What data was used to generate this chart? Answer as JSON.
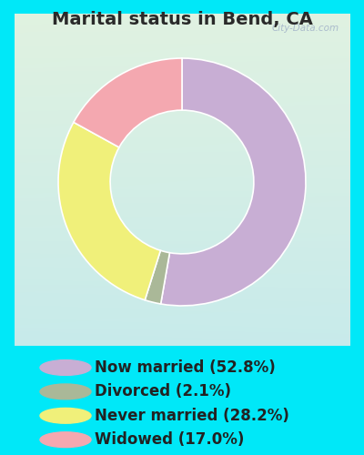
{
  "title": "Marital status in Bend, CA",
  "slices": [
    52.8,
    2.1,
    28.2,
    17.0
  ],
  "labels": [
    "Now married (52.8%)",
    "Divorced (2.1%)",
    "Never married (28.2%)",
    "Widowed (17.0%)"
  ],
  "colors": [
    "#c8aed4",
    "#aab898",
    "#f0f07a",
    "#f4a8b0"
  ],
  "outer_bg": "#00e8f8",
  "chart_bg_top_left": "#d8ede0",
  "chart_bg_bottom_right": "#c0dde8",
  "title_color": "#2a2a2a",
  "title_fontsize": 14,
  "legend_fontsize": 12,
  "watermark": "City-Data.com",
  "startangle": 90,
  "donut_width": 0.42
}
